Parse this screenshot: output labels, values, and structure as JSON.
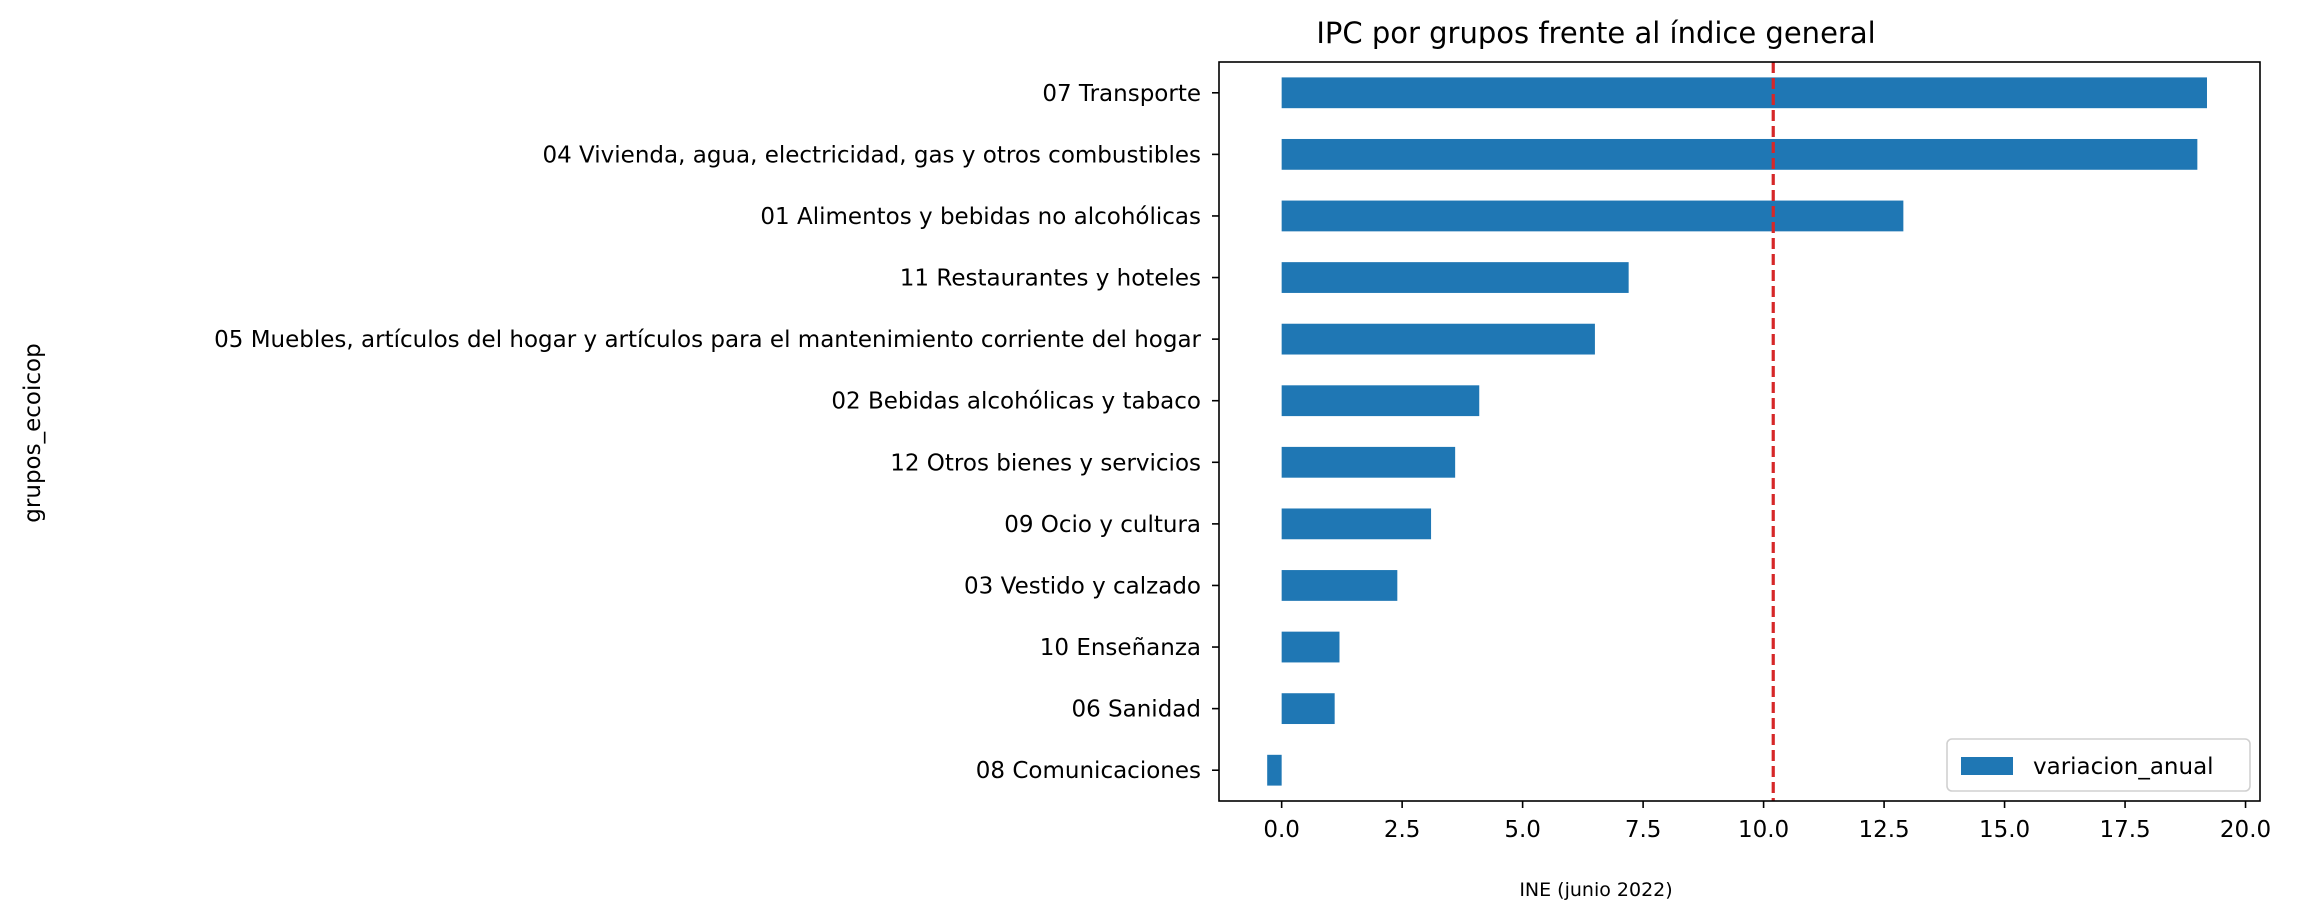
{
  "chart_data": {
    "type": "bar",
    "orientation": "horizontal",
    "title": "IPC por grupos frente al índice general",
    "ylabel": "grupos_ecoicop",
    "xlabel": "",
    "caption": "INE (junio 2022)",
    "categories": [
      "07 Transporte",
      "04 Vivienda, agua, electricidad, gas y otros combustibles",
      "01 Alimentos y bebidas no alcohólicas",
      "11 Restaurantes y hoteles",
      "05 Muebles, artículos del hogar y artículos para el mantenimiento corriente del hogar",
      "02 Bebidas alcohólicas y tabaco",
      "12 Otros bienes y servicios ",
      "09 Ocio y cultura",
      "03 Vestido y calzado",
      "10 Enseñanza",
      "06 Sanidad",
      "08 Comunicaciones"
    ],
    "series": [
      {
        "name": "variacion_anual",
        "color": "#1f77b4",
        "values": [
          19.2,
          19.0,
          12.9,
          7.2,
          6.5,
          4.1,
          3.6,
          3.1,
          2.4,
          1.2,
          1.1,
          -0.3
        ]
      }
    ],
    "reference_line": {
      "value": 10.2,
      "color": "#d62728",
      "style": "dashed"
    },
    "xlim": [
      -1.3,
      20.3
    ],
    "xticks": [
      0.0,
      2.5,
      5.0,
      7.5,
      10.0,
      12.5,
      15.0,
      17.5,
      20.0
    ],
    "xtick_labels": [
      "0.0",
      "2.5",
      "5.0",
      "7.5",
      "10.0",
      "12.5",
      "15.0",
      "17.5",
      "20.0"
    ],
    "grid": false,
    "legend": {
      "placement": "lower-right",
      "entries": [
        "variacion_anual"
      ]
    }
  }
}
